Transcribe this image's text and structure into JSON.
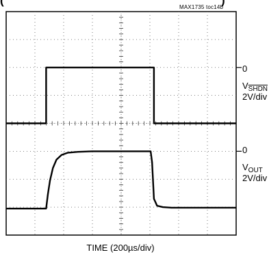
{
  "figure_tag": "MAX1735 toc14b",
  "title_fragments": {
    "left": "(",
    "right": ")"
  },
  "chart_data": {
    "type": "line",
    "title": "",
    "xlabel": "TIME (200µs/div)",
    "ylabel": "",
    "x_per_div_us": 200,
    "grid": true,
    "divisions": {
      "x": 8,
      "y": 8
    },
    "x_range_us": [
      0,
      1600
    ],
    "series": [
      {
        "name_prefix": "V",
        "name_sub": "SHDN",
        "name_sub_overline": true,
        "scale": "2V/div",
        "zero_label": "0",
        "zero_level_div_from_top": 2.0,
        "x_us": [
          0,
          278,
          278,
          1028,
          1028,
          1600
        ],
        "y_div": [
          -2.0,
          -2.0,
          0.0,
          0.0,
          -2.0,
          -2.0
        ]
      },
      {
        "name_prefix": "V",
        "name_sub": "OUT",
        "name_sub_overline": false,
        "scale": "2V/div",
        "zero_label": "0",
        "zero_level_div_from_top": 5.0,
        "x_us": [
          0,
          278,
          290,
          305,
          325,
          350,
          385,
          430,
          500,
          600,
          700,
          800,
          900,
          1005,
          1015,
          1028,
          1050,
          1090,
          1150,
          1600
        ],
        "y_div": [
          -2.05,
          -2.05,
          -1.55,
          -1.05,
          -0.6,
          -0.3,
          -0.13,
          -0.05,
          -0.02,
          0.0,
          0.0,
          0.0,
          0.0,
          0.0,
          -0.4,
          -1.7,
          -1.95,
          -2.0,
          -2.02,
          -2.02
        ]
      }
    ]
  }
}
